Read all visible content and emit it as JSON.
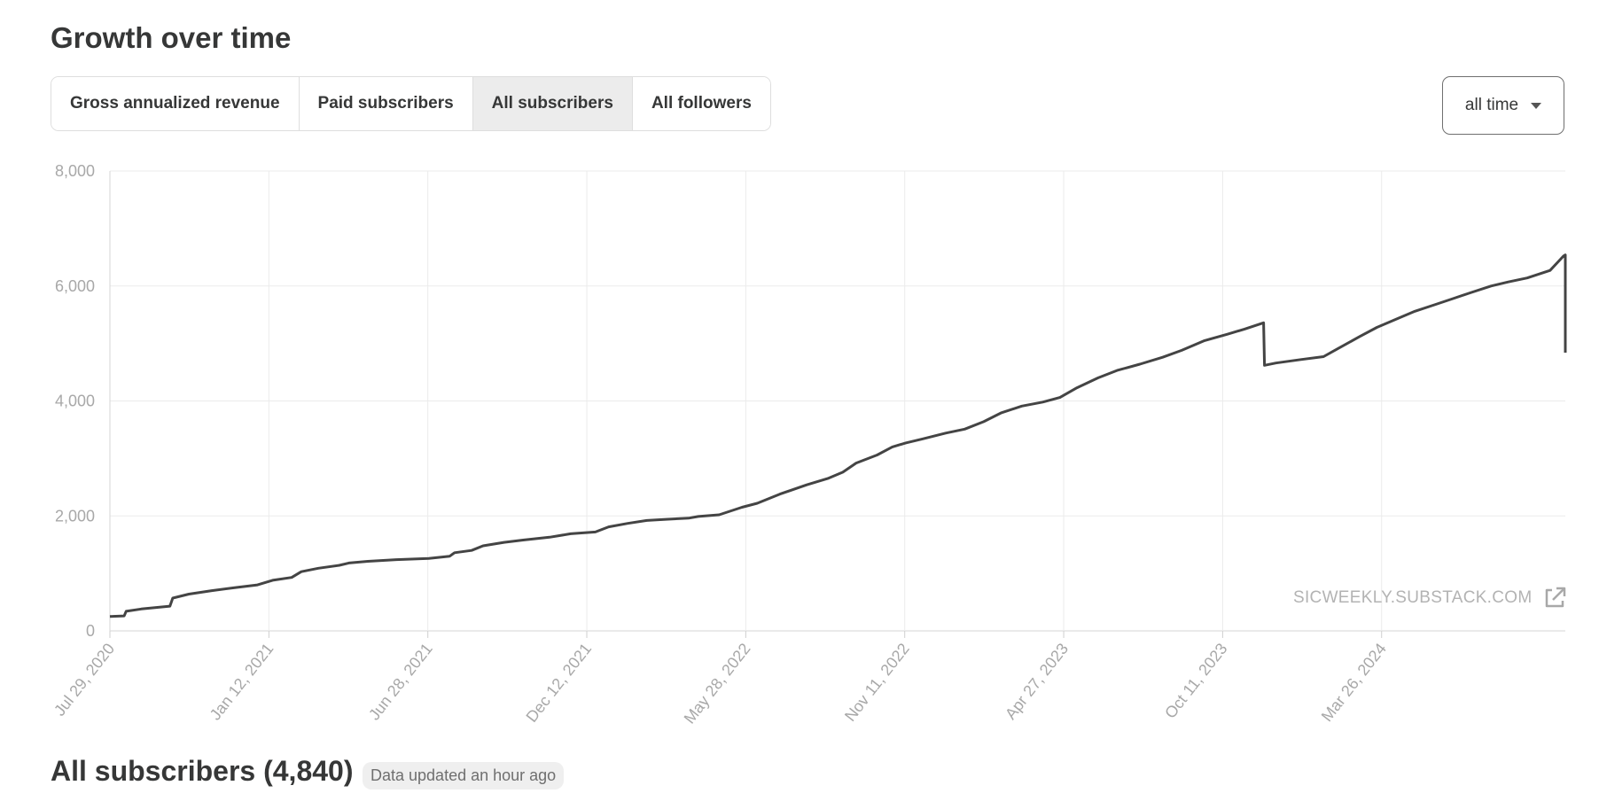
{
  "header": {
    "title": "Growth over time"
  },
  "tabs": [
    {
      "label": "Gross annualized revenue",
      "active": false
    },
    {
      "label": "Paid subscribers",
      "active": false
    },
    {
      "label": "All subscribers",
      "active": true
    },
    {
      "label": "All followers",
      "active": false
    }
  ],
  "range_select": {
    "value": "all time",
    "icon": "caret-down-icon"
  },
  "watermark": {
    "text": "SICWEEKLY.SUBSTACK.COM",
    "icon": "external-link-icon"
  },
  "footer": {
    "title": "All subscribers (4,840)",
    "badge": "Data updated an hour ago"
  },
  "colors": {
    "line": "#444444",
    "grid": "#ebebeb",
    "axis_text": "#a8a8a8",
    "active_tab": "#ececec"
  },
  "chart_data": {
    "type": "line",
    "title": "",
    "xlabel": "",
    "ylabel": "",
    "ylim": [
      0,
      8000
    ],
    "xlim": [
      "2020-07-29",
      "2024-10-05"
    ],
    "y_ticks": [
      "0",
      "2,000",
      "4,000",
      "6,000",
      "8,000"
    ],
    "y_tick_values": [
      0,
      2000,
      4000,
      6000,
      8000
    ],
    "x_tick_labels": [
      "Jul 29, 2020",
      "Jan 12, 2021",
      "Jun 28, 2021",
      "Dec 12, 2021",
      "May 28, 2022",
      "Nov 11, 2022",
      "Apr 27, 2023",
      "Oct 11, 2023",
      "Mar 26, 2024"
    ],
    "x_tick_dates": [
      "2020-07-29",
      "2021-01-12",
      "2021-06-28",
      "2021-12-12",
      "2022-05-28",
      "2022-11-11",
      "2023-04-27",
      "2023-10-11",
      "2024-03-26"
    ],
    "grid": true,
    "series": [
      {
        "points": [
          [
            "2020-07-29",
            250
          ],
          [
            "2020-08-13",
            260
          ],
          [
            "2020-08-15",
            340
          ],
          [
            "2020-08-31",
            380
          ],
          [
            "2020-09-30",
            430
          ],
          [
            "2020-10-03",
            570
          ],
          [
            "2020-10-20",
            640
          ],
          [
            "2020-11-13",
            700
          ],
          [
            "2020-12-07",
            750
          ],
          [
            "2020-12-31",
            800
          ],
          [
            "2021-01-16",
            880
          ],
          [
            "2021-02-05",
            930
          ],
          [
            "2021-02-15",
            1030
          ],
          [
            "2021-03-05",
            1090
          ],
          [
            "2021-03-27",
            1140
          ],
          [
            "2021-04-06",
            1180
          ],
          [
            "2021-04-26",
            1210
          ],
          [
            "2021-05-26",
            1240
          ],
          [
            "2021-06-29",
            1260
          ],
          [
            "2021-07-21",
            1300
          ],
          [
            "2021-07-26",
            1360
          ],
          [
            "2021-08-13",
            1400
          ],
          [
            "2021-08-25",
            1480
          ],
          [
            "2021-09-16",
            1540
          ],
          [
            "2021-10-06",
            1580
          ],
          [
            "2021-11-03",
            1630
          ],
          [
            "2021-11-25",
            1690
          ],
          [
            "2021-12-21",
            1720
          ],
          [
            "2022-01-04",
            1810
          ],
          [
            "2022-01-24",
            1870
          ],
          [
            "2022-02-13",
            1920
          ],
          [
            "2022-03-05",
            1940
          ],
          [
            "2022-03-29",
            1960
          ],
          [
            "2022-04-08",
            1990
          ],
          [
            "2022-04-30",
            2020
          ],
          [
            "2022-05-24",
            2150
          ],
          [
            "2022-06-09",
            2220
          ],
          [
            "2022-07-03",
            2380
          ],
          [
            "2022-07-31",
            2540
          ],
          [
            "2022-08-22",
            2650
          ],
          [
            "2022-09-07",
            2760
          ],
          [
            "2022-09-21",
            2920
          ],
          [
            "2022-10-13",
            3060
          ],
          [
            "2022-10-29",
            3200
          ],
          [
            "2022-11-12",
            3270
          ],
          [
            "2022-11-30",
            3340
          ],
          [
            "2022-12-24",
            3440
          ],
          [
            "2023-01-13",
            3510
          ],
          [
            "2023-02-02",
            3640
          ],
          [
            "2023-02-20",
            3790
          ],
          [
            "2023-03-14",
            3910
          ],
          [
            "2023-04-05",
            3980
          ],
          [
            "2023-04-23",
            4060
          ],
          [
            "2023-05-11",
            4230
          ],
          [
            "2023-06-02",
            4400
          ],
          [
            "2023-06-22",
            4530
          ],
          [
            "2023-07-16",
            4640
          ],
          [
            "2023-08-09",
            4760
          ],
          [
            "2023-08-29",
            4880
          ],
          [
            "2023-09-22",
            5050
          ],
          [
            "2023-10-16",
            5160
          ],
          [
            "2023-11-03",
            5250
          ],
          [
            "2023-11-23",
            5360
          ],
          [
            "2023-11-24",
            4620
          ],
          [
            "2023-12-06",
            4660
          ],
          [
            "2024-01-01",
            4720
          ],
          [
            "2024-01-25",
            4770
          ],
          [
            "2024-02-08",
            4900
          ],
          [
            "2024-03-03",
            5120
          ],
          [
            "2024-03-21",
            5280
          ],
          [
            "2024-04-10",
            5420
          ],
          [
            "2024-04-30",
            5560
          ],
          [
            "2024-05-22",
            5680
          ],
          [
            "2024-06-09",
            5780
          ],
          [
            "2024-06-27",
            5880
          ],
          [
            "2024-07-19",
            6000
          ],
          [
            "2024-08-06",
            6070
          ],
          [
            "2024-08-26",
            6140
          ],
          [
            "2024-09-19",
            6270
          ],
          [
            "2024-09-29",
            6450
          ],
          [
            "2024-10-03",
            6520
          ],
          [
            "2024-10-05",
            6540
          ],
          [
            "2024-10-05",
            4840
          ]
        ]
      }
    ]
  }
}
